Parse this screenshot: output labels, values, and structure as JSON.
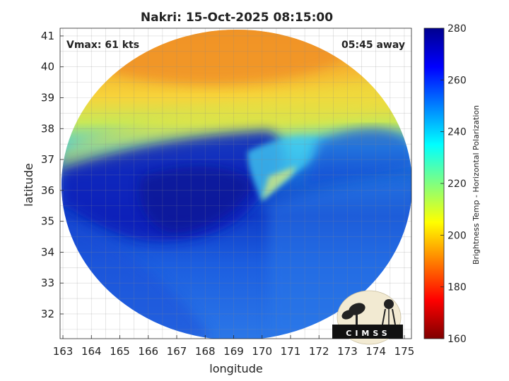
{
  "figure": {
    "title": "Nakri: 15-Oct-2025 08:15:00",
    "vmax_label": "Vmax: 61 kts",
    "away_label": "05:45 away",
    "logo_text": "CIMSS"
  },
  "map": {
    "x_axis": {
      "label": "longitude",
      "range": [
        162.9,
        175.25
      ],
      "ticks": [
        "163",
        "164",
        "165",
        "166",
        "167",
        "168",
        "169",
        "170",
        "171",
        "172",
        "173",
        "174",
        "175"
      ]
    },
    "y_axis": {
      "label": "latitude",
      "range": [
        31.2,
        41.25
      ],
      "ticks": [
        "32",
        "33",
        "34",
        "35",
        "36",
        "37",
        "38",
        "39",
        "40",
        "41"
      ]
    },
    "grid": true
  },
  "colorbar": {
    "label": "Brightness Temp - Horizontal Polarization",
    "range": [
      160,
      280
    ],
    "ticks": [
      "280",
      "260",
      "240",
      "220",
      "200",
      "180",
      "160"
    ],
    "colormap": "jet",
    "colors": [
      "#7f0000",
      "#ff0000",
      "#ff8000",
      "#ffff00",
      "#80ff80",
      "#00ffff",
      "#0080ff",
      "#0000ff",
      "#00008f"
    ]
  },
  "chart_data": {
    "type": "heatmap",
    "title": "Nakri: 15-Oct-2025 08:15:00",
    "xlabel": "longitude",
    "ylabel": "latitude",
    "xlim": [
      162.9,
      175.25
    ],
    "ylim": [
      31.2,
      41.25
    ],
    "colorbar_label": "Brightness Temp - Horizontal Polarization",
    "colorbar_range": [
      160,
      280
    ],
    "annotations": [
      "Vmax: 61 kts",
      "05:45 away"
    ]
  }
}
